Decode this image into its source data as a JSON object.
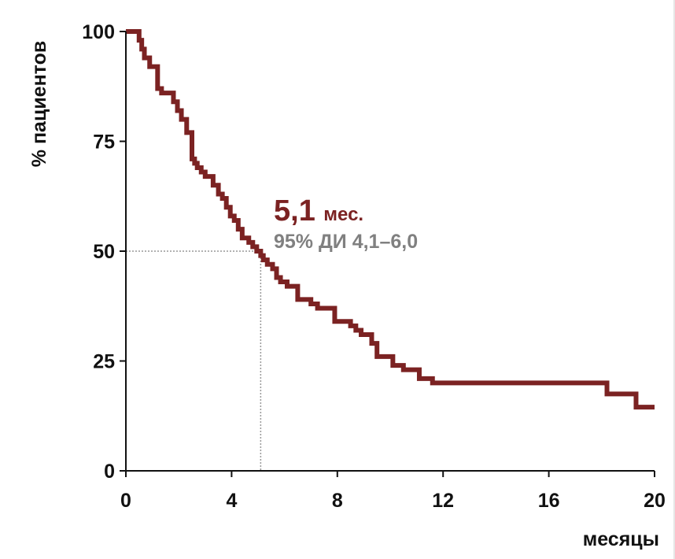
{
  "chart_data": {
    "type": "line",
    "subtype": "kaplan-meier-step",
    "title": "",
    "xlabel": "месяцы",
    "ylabel": "% пациентов",
    "xlim": [
      0,
      20
    ],
    "ylim": [
      0,
      100
    ],
    "xticks": [
      0,
      4,
      8,
      12,
      16,
      20
    ],
    "yticks": [
      0,
      25,
      50,
      75,
      100
    ],
    "grid": false,
    "colors": {
      "curve": "#7b2222",
      "median_text": "#7b2222",
      "ci_text": "#808080",
      "reference_line": "#999999",
      "axis": "#111111"
    },
    "series": [
      {
        "x": [
          0,
          0.5,
          0.6,
          0.7,
          0.9,
          1.2,
          1.35,
          1.8,
          1.95,
          2.1,
          2.3,
          2.5,
          2.6,
          2.7,
          2.85,
          3.0,
          3.3,
          3.5,
          3.65,
          3.8,
          3.95,
          4.1,
          4.25,
          4.4,
          4.65,
          4.8,
          4.95,
          5.1,
          5.2,
          5.35,
          5.55,
          5.7,
          5.85,
          6.1,
          6.5,
          7.0,
          7.25,
          7.9,
          8.5,
          8.7,
          8.9,
          9.3,
          9.5,
          10.1,
          10.5,
          11.1,
          11.6,
          18.2,
          19.3,
          20.0
        ],
        "y": [
          100,
          98,
          96,
          94,
          92,
          87,
          86,
          84,
          82,
          80,
          77,
          71,
          70,
          69,
          68,
          67,
          65,
          63,
          62,
          60,
          58,
          57,
          55,
          53,
          52,
          51,
          50,
          49,
          48,
          47,
          46,
          44,
          43,
          42,
          39,
          38,
          37,
          34,
          33,
          32,
          31,
          29,
          26,
          24,
          23,
          21,
          20,
          17.5,
          14.5,
          14.5
        ]
      }
    ],
    "annotations": {
      "median_value": "5,1",
      "median_unit": "мес.",
      "ci": "95% ДИ 4,1–6,0",
      "median_x": 5.1,
      "median_y": 50
    }
  }
}
